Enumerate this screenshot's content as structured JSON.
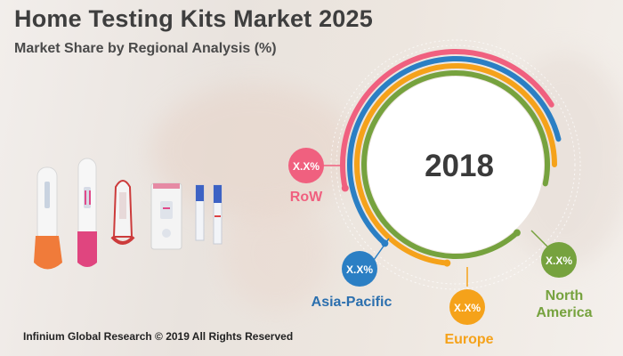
{
  "title": "Home Testing Kits Market 2025",
  "subtitle": "Market Share by Regional Analysis (%)",
  "footer": "Infinium Global Research © 2019 All Rights Reserved",
  "chart_data": {
    "type": "pie",
    "center_label": "2018",
    "series": [
      {
        "name": "RoW",
        "value_label": "X.X%",
        "color": "#f0607f"
      },
      {
        "name": "Asia-Pacific",
        "value_label": "X.X%",
        "color": "#2b7fc4"
      },
      {
        "name": "Europe",
        "value_label": "X.X%",
        "color": "#f5a21a"
      },
      {
        "name": "North America",
        "value_label": "X.X%",
        "color": "#76a23e"
      }
    ]
  },
  "legend_labels": {
    "row": "RoW",
    "asia": "Asia-Pacific",
    "europe": "Europe",
    "na_line1": "North",
    "na_line2": "America"
  }
}
